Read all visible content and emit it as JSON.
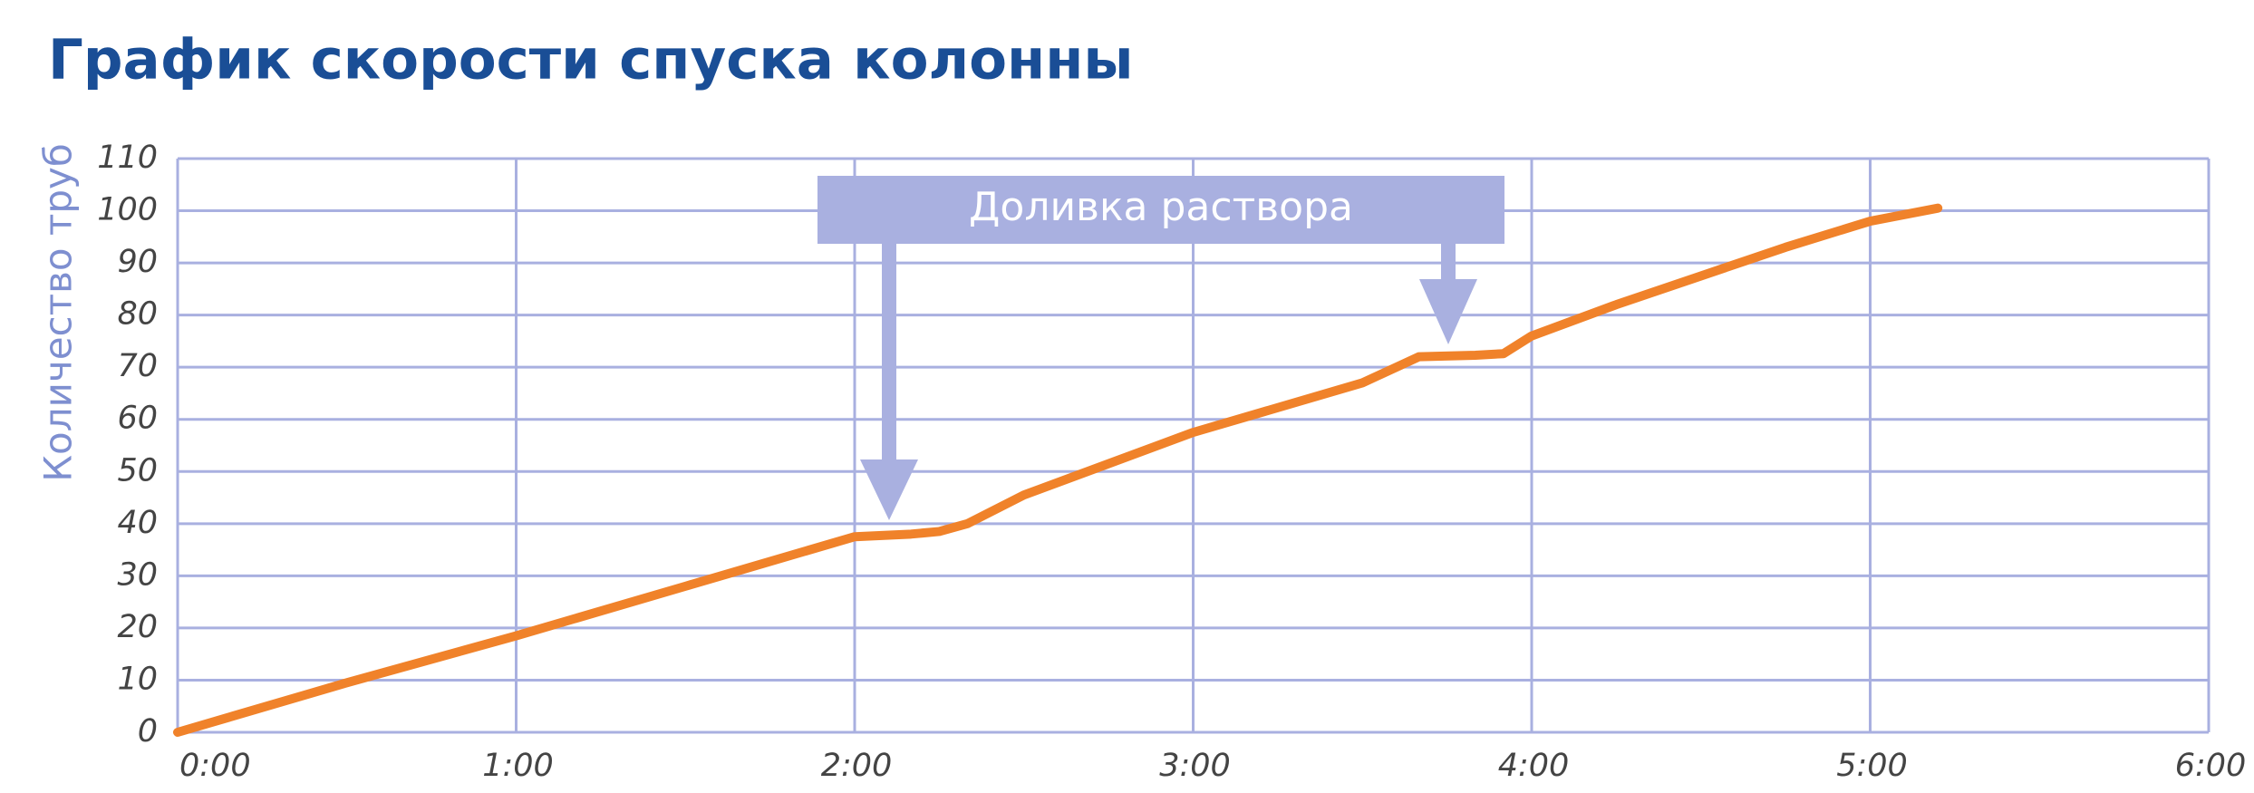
{
  "chart_data": {
    "type": "line",
    "title": "График скорости спуска колонны",
    "y_label": "Количество труб",
    "annotation": "Доливка раствора",
    "x": [
      0,
      30,
      60,
      90,
      120,
      130,
      135,
      140,
      150,
      180,
      210,
      220,
      230,
      235,
      240,
      255,
      270,
      285,
      300,
      312
    ],
    "series": [
      {
        "color": "#f0822a",
        "values": [
          0,
          9.5,
          18.5,
          28,
          37.5,
          38,
          38.5,
          40,
          45.5,
          57.5,
          67,
          72,
          72.3,
          72.6,
          76,
          82,
          87.5,
          93,
          98,
          100.5
        ]
      }
    ],
    "xlim": [
      0,
      360
    ],
    "xticks": [
      {
        "value": 0,
        "label": "0:00"
      },
      {
        "value": 60,
        "label": "1:00"
      },
      {
        "value": 120,
        "label": "2:00"
      },
      {
        "value": 180,
        "label": "3:00"
      },
      {
        "value": 240,
        "label": "4:00"
      },
      {
        "value": 300,
        "label": "5:00"
      },
      {
        "value": 360,
        "label": "6:00"
      }
    ],
    "ylim": [
      0,
      110
    ],
    "yticks": [
      0,
      10,
      20,
      30,
      40,
      50,
      60,
      70,
      80,
      90,
      100,
      110
    ],
    "grid": true
  }
}
